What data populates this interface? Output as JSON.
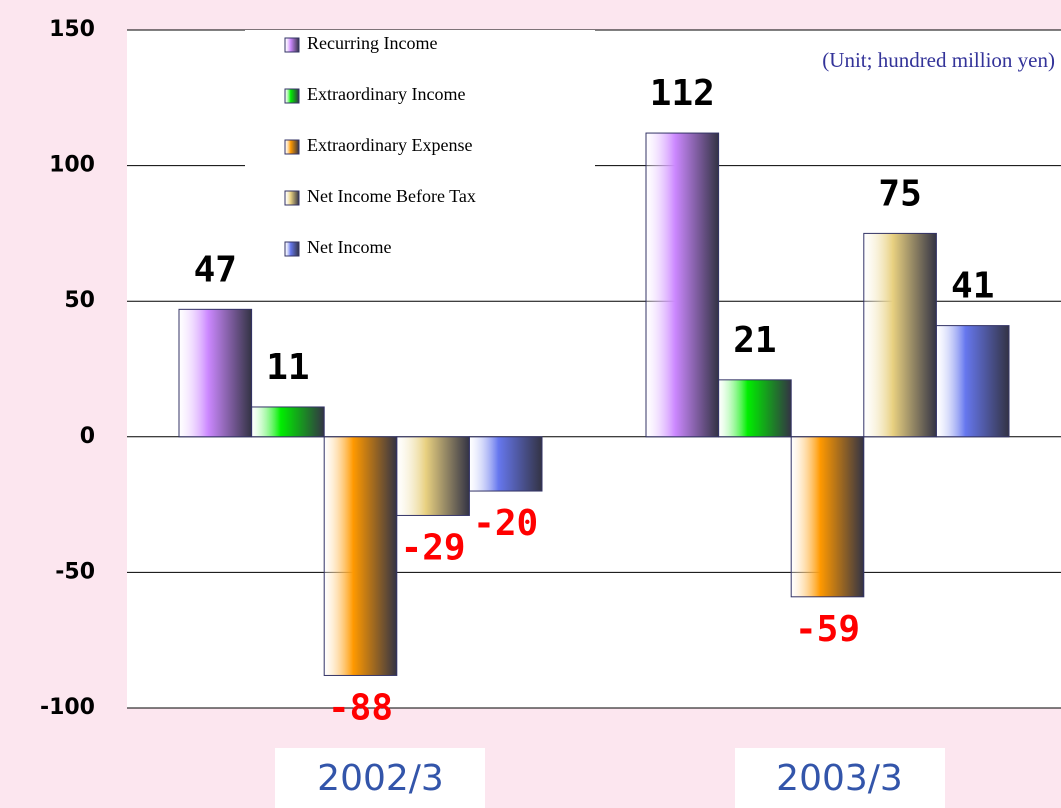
{
  "chart_data": {
    "type": "bar",
    "note": "(Unit; hundred million yen)",
    "categories": [
      "2002/3",
      "2003/3"
    ],
    "series": [
      {
        "name": "Recurring Income",
        "color": "#cc88ff",
        "values": [
          47,
          112
        ]
      },
      {
        "name": "Extraordinary Income",
        "color": "#00ee00",
        "values": [
          11,
          21
        ]
      },
      {
        "name": "Extraordinary Expense",
        "color": "#ff9900",
        "values": [
          -88,
          -59
        ]
      },
      {
        "name": "Net Income Before Tax",
        "color": "#e8d080",
        "values": [
          -29,
          75
        ]
      },
      {
        "name": "Net Income",
        "color": "#6677ee",
        "values": [
          -20,
          41
        ]
      }
    ],
    "ylim": [
      -100,
      150
    ],
    "yticks": [
      -100,
      -50,
      0,
      50,
      100,
      150
    ],
    "grid": true,
    "positive_label_color": "#000000",
    "negative_label_color": "#ff0000"
  }
}
